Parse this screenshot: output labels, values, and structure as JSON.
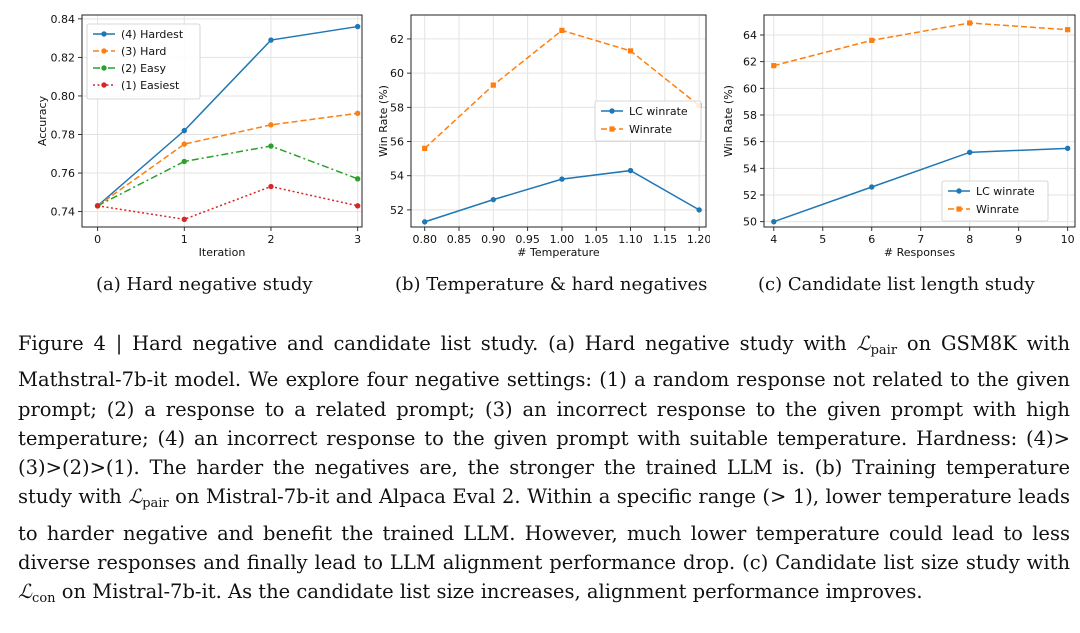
{
  "chart_data": [
    {
      "type": "line",
      "title": "",
      "xlabel": "Iteration",
      "ylabel": "Accuracy",
      "xlim": [
        -0.18,
        3.05
      ],
      "ylim": [
        0.732,
        0.842
      ],
      "xticks": [
        0,
        1,
        2,
        3
      ],
      "xtick_labels": [
        "0",
        "1",
        "2",
        "3"
      ],
      "yticks": [
        0.74,
        0.76,
        0.78,
        0.8,
        0.82,
        0.84
      ],
      "ytick_labels": [
        "0.74",
        "0.76",
        "0.78",
        "0.80",
        "0.82",
        "0.84"
      ],
      "grid": true,
      "legend_position": "top-left",
      "x": [
        0,
        1,
        2,
        3
      ],
      "series": [
        {
          "name": "(4) Hardest",
          "values": [
            0.743,
            0.782,
            0.829,
            0.836
          ],
          "color": "#1f77b4",
          "dash": "solid",
          "marker": "circle"
        },
        {
          "name": "(3) Hard",
          "values": [
            0.743,
            0.775,
            0.785,
            0.791
          ],
          "color": "#ff7f0e",
          "dash": "dashed",
          "marker": "circle"
        },
        {
          "name": "(2) Easy",
          "values": [
            0.743,
            0.766,
            0.774,
            0.757
          ],
          "color": "#2ca02c",
          "dash": "dashdot",
          "marker": "circle"
        },
        {
          "name": "(1) Easiest",
          "values": [
            0.743,
            0.736,
            0.753,
            0.743
          ],
          "color": "#d62728",
          "dash": "dotted",
          "marker": "circle"
        }
      ]
    },
    {
      "type": "line",
      "title": "",
      "xlabel": "# Temperature",
      "ylabel": "Win Rate (%)",
      "xlim": [
        0.78,
        1.21
      ],
      "ylim": [
        51.0,
        63.4
      ],
      "xticks": [
        0.8,
        0.85,
        0.9,
        0.95,
        1.0,
        1.05,
        1.1,
        1.15,
        1.2
      ],
      "xtick_labels": [
        "0.80",
        "0.85",
        "0.90",
        "0.95",
        "1.00",
        "1.05",
        "1.10",
        "1.15",
        "1.20"
      ],
      "yticks": [
        52,
        54,
        56,
        58,
        60,
        62
      ],
      "ytick_labels": [
        "52",
        "54",
        "56",
        "58",
        "60",
        "62"
      ],
      "grid": true,
      "legend_position": "center-right",
      "x": [
        0.8,
        0.9,
        1.0,
        1.1,
        1.2
      ],
      "series": [
        {
          "name": "LC winrate",
          "values": [
            51.3,
            52.6,
            53.8,
            54.3,
            52.0
          ],
          "color": "#1f77b4",
          "dash": "solid",
          "marker": "circle"
        },
        {
          "name": "Winrate",
          "values": [
            55.6,
            59.3,
            62.5,
            61.3,
            58.1
          ],
          "color": "#ff7f0e",
          "dash": "dashed",
          "marker": "square"
        }
      ]
    },
    {
      "type": "line",
      "title": "",
      "xlabel": "# Responses",
      "ylabel": "Win Rate (%)",
      "xlim": [
        3.8,
        10.15
      ],
      "ylim": [
        49.6,
        65.5
      ],
      "xticks": [
        4,
        5,
        6,
        7,
        8,
        9,
        10
      ],
      "xtick_labels": [
        "4",
        "5",
        "6",
        "7",
        "8",
        "9",
        "10"
      ],
      "yticks": [
        50,
        52,
        54,
        56,
        58,
        60,
        62,
        64
      ],
      "ytick_labels": [
        "50",
        "52",
        "54",
        "56",
        "58",
        "60",
        "62",
        "64"
      ],
      "grid": true,
      "legend_position": "bottom-right",
      "x": [
        4,
        6,
        8,
        10
      ],
      "series": [
        {
          "name": "LC winrate",
          "values": [
            50.0,
            52.6,
            55.2,
            55.5
          ],
          "color": "#1f77b4",
          "dash": "solid",
          "marker": "circle"
        },
        {
          "name": "Winrate",
          "values": [
            61.7,
            63.6,
            64.9,
            64.4
          ],
          "color": "#ff7f0e",
          "dash": "dashed",
          "marker": "square"
        }
      ]
    }
  ],
  "subcaptions": [
    "(a)  Hard negative study",
    "(b)  Temperature & hard negatives",
    "(c)  Candidate list length study"
  ],
  "caption": {
    "p1": "Figure 4 | Hard negative and candidate list study. (a) Hard negative study with ",
    "L1": "ℒ",
    "L1_sub": "pair",
    "p2": " on GSM8K with Mathstral-7b-it model. We explore four negative settings: (1) a random response not related to the given prompt; (2) a response to a related prompt; (3) an incorrect response to the given prompt with high temperature; (4) an incorrect response to the given prompt with suitable temperature. Hardness: (4)>(3)>(2)>(1). The harder the negatives are, the stronger the trained LLM is. (b) Training temperature study with ",
    "L2": "ℒ",
    "L2_sub": "pair",
    "p3": " on Mistral-7b-it and Alpaca Eval 2. Within a specific range (> 1), lower temperature leads to harder negative and benefit the trained LLM. However, much lower temperature could lead to less diverse responses and finally lead to LLM alignment performance drop. (c) Candidate list size study with ",
    "L3": "ℒ",
    "L3_sub": "con",
    "p4": " on Mistral-7b-it. As the candidate list size increases, alignment performance improves."
  }
}
